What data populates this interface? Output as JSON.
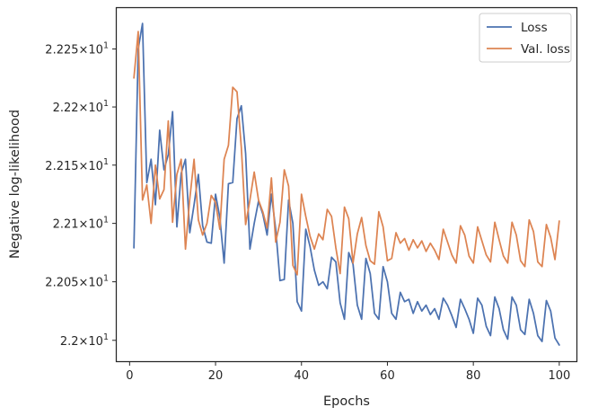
{
  "chart_data": {
    "type": "line",
    "title": "",
    "xlabel": "Epochs",
    "ylabel": "Negative log-likelihood",
    "xlim": [
      -3,
      104
    ],
    "ylim": [
      21.9822,
      22.2853
    ],
    "yscale": "log",
    "x_ticks": [
      0,
      20,
      40,
      60,
      80,
      100
    ],
    "y_ticks": [
      {
        "value": 22.0,
        "mantissa": "2.2",
        "base": "10",
        "exp": "1"
      },
      {
        "value": 22.05,
        "mantissa": "2.205",
        "base": "10",
        "exp": "1"
      },
      {
        "value": 22.1,
        "mantissa": "2.21",
        "base": "10",
        "exp": "1"
      },
      {
        "value": 22.15,
        "mantissa": "2.215",
        "base": "10",
        "exp": "1"
      },
      {
        "value": 22.2,
        "mantissa": "2.22",
        "base": "10",
        "exp": "1"
      },
      {
        "value": 22.25,
        "mantissa": "2.225",
        "base": "10",
        "exp": "1"
      }
    ],
    "grid": false,
    "legend_position": "top-right",
    "x": [
      1,
      2,
      3,
      4,
      5,
      6,
      7,
      8,
      9,
      10,
      11,
      12,
      13,
      14,
      15,
      16,
      17,
      18,
      19,
      20,
      21,
      22,
      23,
      24,
      25,
      26,
      27,
      28,
      29,
      30,
      31,
      32,
      33,
      34,
      35,
      36,
      37,
      38,
      39,
      40,
      41,
      42,
      43,
      44,
      45,
      46,
      47,
      48,
      49,
      50,
      51,
      52,
      53,
      54,
      55,
      56,
      57,
      58,
      59,
      60,
      61,
      62,
      63,
      64,
      65,
      66,
      67,
      68,
      69,
      70,
      71,
      72,
      73,
      74,
      75,
      76,
      77,
      78,
      79,
      80,
      81,
      82,
      83,
      84,
      85,
      86,
      87,
      88,
      89,
      90,
      91,
      92,
      93,
      94,
      95,
      96,
      97,
      98,
      99,
      100
    ],
    "series": [
      {
        "name": "Loss",
        "color": "#4c72b0",
        "values": [
          22.079,
          22.25,
          22.272,
          22.135,
          22.155,
          22.116,
          22.18,
          22.146,
          22.159,
          22.196,
          22.097,
          22.143,
          22.155,
          22.092,
          22.116,
          22.142,
          22.098,
          22.084,
          22.083,
          22.125,
          22.105,
          22.066,
          22.134,
          22.135,
          22.19,
          22.201,
          22.16,
          22.078,
          22.1,
          22.119,
          22.108,
          22.09,
          22.125,
          22.095,
          22.051,
          22.052,
          22.12,
          22.1,
          22.033,
          22.025,
          22.095,
          22.08,
          22.06,
          22.047,
          22.05,
          22.044,
          22.071,
          22.067,
          22.032,
          22.018,
          22.075,
          22.065,
          22.03,
          22.018,
          22.07,
          22.057,
          22.023,
          22.018,
          22.063,
          22.05,
          22.023,
          22.018,
          22.041,
          22.033,
          22.035,
          22.023,
          22.033,
          22.025,
          22.03,
          22.022,
          22.027,
          22.018,
          22.036,
          22.03,
          22.021,
          22.011,
          22.035,
          22.027,
          22.018,
          22.006,
          22.036,
          22.03,
          22.012,
          22.004,
          22.037,
          22.027,
          22.009,
          22.001,
          22.037,
          22.03,
          22.009,
          22.005,
          22.035,
          22.023,
          22.004,
          21.999,
          22.034,
          22.025,
          22.002,
          21.996
        ]
      },
      {
        "name": "Val. loss",
        "color": "#dd8452",
        "values": [
          22.225,
          22.265,
          22.12,
          22.133,
          22.1,
          22.15,
          22.121,
          22.129,
          22.188,
          22.101,
          22.142,
          22.155,
          22.078,
          22.121,
          22.155,
          22.103,
          22.09,
          22.1,
          22.124,
          22.118,
          22.095,
          22.155,
          22.167,
          22.217,
          22.213,
          22.165,
          22.099,
          22.12,
          22.144,
          22.12,
          22.11,
          22.096,
          22.139,
          22.084,
          22.101,
          22.146,
          22.132,
          22.064,
          22.056,
          22.125,
          22.106,
          22.089,
          22.078,
          22.091,
          22.086,
          22.112,
          22.106,
          22.079,
          22.057,
          22.114,
          22.104,
          22.066,
          22.091,
          22.105,
          22.081,
          22.068,
          22.065,
          22.11,
          22.097,
          22.068,
          22.07,
          22.092,
          22.083,
          22.087,
          22.077,
          22.086,
          22.079,
          22.085,
          22.076,
          22.083,
          22.077,
          22.069,
          22.095,
          22.084,
          22.073,
          22.066,
          22.098,
          22.09,
          22.072,
          22.066,
          22.097,
          22.085,
          22.073,
          22.067,
          22.101,
          22.086,
          22.072,
          22.066,
          22.101,
          22.09,
          22.068,
          22.063,
          22.103,
          22.093,
          22.067,
          22.063,
          22.099,
          22.088,
          22.069,
          22.102
        ]
      }
    ]
  }
}
